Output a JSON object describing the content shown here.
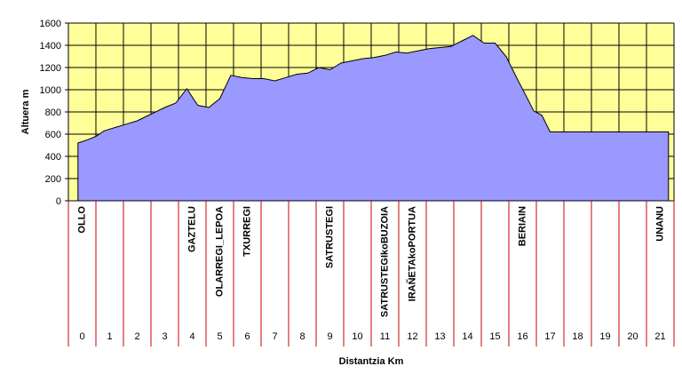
{
  "chart_data": {
    "type": "area",
    "title": "",
    "xlabel": "Distantzia Km",
    "ylabel": "Altuera m",
    "xlim": [
      -0.5,
      21.5
    ],
    "ylim": [
      0,
      1600
    ],
    "y_ticks": [
      0,
      200,
      400,
      600,
      800,
      1000,
      1200,
      1400,
      1600
    ],
    "x_ticks": [
      "0",
      "1",
      "2",
      "3",
      "4",
      "5",
      "6",
      "7",
      "8",
      "9",
      "10",
      "11",
      "12",
      "13",
      "14",
      "15",
      "16",
      "17",
      "18",
      "19",
      "20",
      "21"
    ],
    "grid": true,
    "series": [
      {
        "x": [
          -0.15,
          0.2,
          0.5,
          0.8,
          1.2,
          1.6,
          2.0,
          2.5,
          3.0,
          3.4,
          3.8,
          4.2,
          4.6,
          5.0,
          5.4,
          5.8,
          6.2,
          6.6,
          7.0,
          7.4,
          7.8,
          8.2,
          8.6,
          9.0,
          9.4,
          9.8,
          10.2,
          10.6,
          11.0,
          11.4,
          11.8,
          12.2,
          12.6,
          13.0,
          13.4,
          13.8,
          14.2,
          14.6,
          15.0,
          15.4,
          15.8,
          16.2,
          16.4,
          16.7,
          17.0,
          17.3,
          17.7,
          18.1,
          18.5,
          18.9,
          19.3,
          19.7,
          20.1,
          20.5,
          20.9,
          21.3
        ],
        "y": [
          520,
          550,
          580,
          630,
          660,
          690,
          720,
          780,
          840,
          880,
          1010,
          860,
          840,
          920,
          1130,
          1110,
          1100,
          1100,
          1080,
          1110,
          1140,
          1150,
          1200,
          1180,
          1240,
          1260,
          1280,
          1290,
          1310,
          1340,
          1330,
          1350,
          1370,
          1380,
          1390,
          1440,
          1490,
          1420,
          1420,
          1300,
          1100,
          910,
          810,
          770,
          620,
          620,
          620,
          620,
          620,
          620,
          620,
          620,
          620,
          620,
          620,
          620
        ]
      }
    ],
    "places": [
      {
        "label": "OLLO",
        "km": 0
      },
      {
        "label": "GAZTELU",
        "km": 4
      },
      {
        "label": "OLARREGI_LEPOA",
        "km": 5
      },
      {
        "label": "TXURREGI",
        "km": 6
      },
      {
        "label": "SATRUSTEGI",
        "km": 9
      },
      {
        "label": "SATRUSTEGIkoBUZOIA",
        "km": 11
      },
      {
        "label": "IRAÑETAkoPORTUA",
        "km": 12
      },
      {
        "label": "BERIAIN",
        "km": 16
      },
      {
        "label": "UNANU",
        "km": 21
      }
    ],
    "colors": {
      "plot_bg": "#ffff99",
      "area_fill": "#9999ff",
      "grid": "#000000",
      "band_lines": "#cc0000"
    }
  }
}
